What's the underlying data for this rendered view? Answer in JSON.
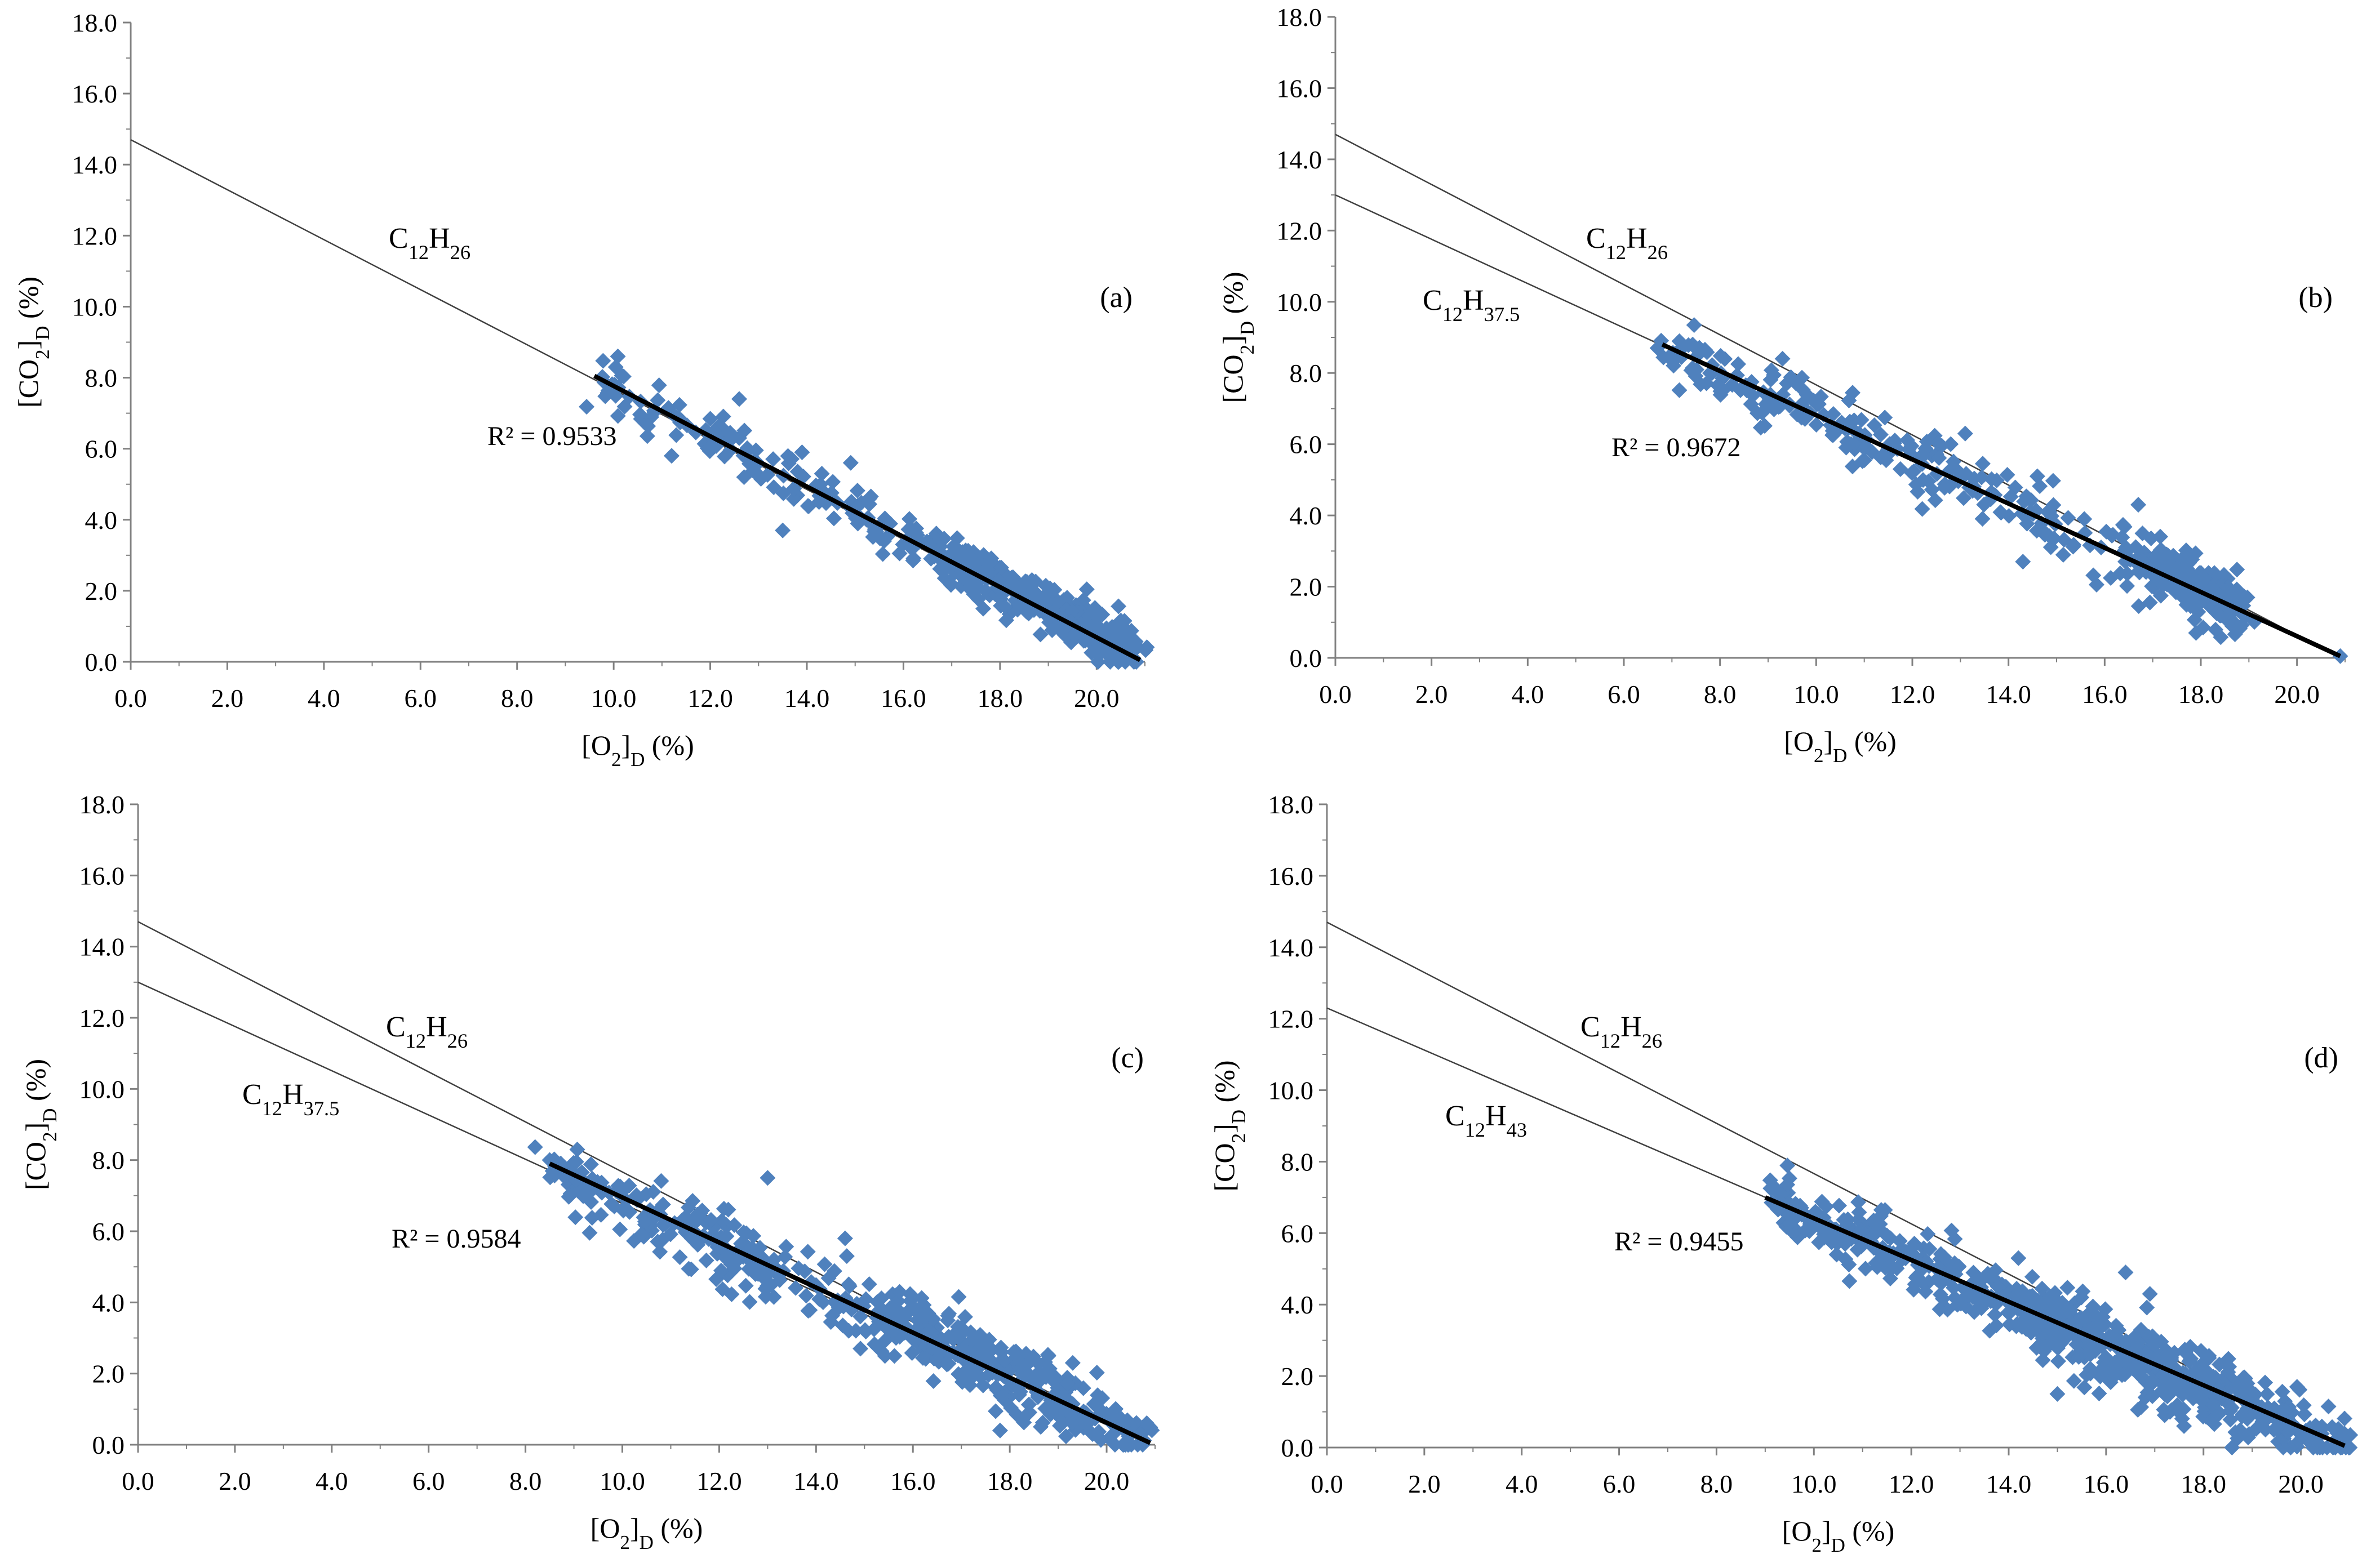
{
  "figure_title": "CO2 vs O2 dilution scatter panels",
  "chart_data": [
    {
      "type": "scatter",
      "panel_label": "(a)",
      "xlabel_main": "[O",
      "xlabel_sub1": "2",
      "xlabel_mid": "]",
      "xlabel_sub2": "D",
      "xlabel_end": " (%)",
      "ylabel_main": "[CO",
      "ylabel_sub1": "2",
      "ylabel_mid": "]",
      "ylabel_sub2": "D",
      "ylabel_end": " (%)",
      "xlim": [
        0,
        21
      ],
      "ylim": [
        0,
        18
      ],
      "xticks": [
        "0.0",
        "2.0",
        "4.0",
        "6.0",
        "8.0",
        "10.0",
        "12.0",
        "14.0",
        "16.0",
        "18.0",
        "20.0"
      ],
      "yticks": [
        "0.0",
        "2.0",
        "4.0",
        "6.0",
        "8.0",
        "10.0",
        "12.0",
        "14.0",
        "16.0",
        "18.0"
      ],
      "r2_label": "R² = 0.9533",
      "fuel_lines": [
        {
          "name_main": "C",
          "name_sub1": "12",
          "name_mid": "H",
          "name_sub2": "26",
          "x0": 0,
          "y0": 14.7,
          "x1": 20.9,
          "y1": 0
        }
      ],
      "trendline": {
        "x0": 9.6,
        "y0": 8.05,
        "x1": 20.9,
        "y1": 0.05
      },
      "point_clusters": [
        {
          "x": [
            9.6,
            20.9
          ],
          "y": [
            8.05,
            0.05
          ],
          "count": 240,
          "scatter": 0.35
        },
        {
          "x": [
            16.5,
            20.8
          ],
          "y": [
            3.3,
            0.3
          ],
          "count": 260,
          "scatter": 0.3
        }
      ],
      "points": [
        {
          "x": 11.2,
          "y": 5.8
        },
        {
          "x": 11.4,
          "y": 6.8
        },
        {
          "x": 12.6,
          "y": 7.4
        },
        {
          "x": 12.6,
          "y": 6.3
        },
        {
          "x": 12.7,
          "y": 5.2
        },
        {
          "x": 13.5,
          "y": 3.7
        },
        {
          "x": 13.9,
          "y": 5.9
        },
        {
          "x": 15.3,
          "y": 4.6
        },
        {
          "x": 15.6,
          "y": 3.4
        }
      ],
      "series_color": "#4f81bd"
    },
    {
      "type": "scatter",
      "panel_label": "(b)",
      "xlabel_main": "[O",
      "xlabel_sub1": "2",
      "xlabel_mid": "]",
      "xlabel_sub2": "D",
      "xlabel_end": " (%)",
      "ylabel_main": "[CO",
      "ylabel_sub1": "2",
      "ylabel_mid": "]",
      "ylabel_sub2": "D",
      "ylabel_end": " (%)",
      "xlim": [
        0,
        21
      ],
      "ylim": [
        0,
        18
      ],
      "xticks": [
        "0.0",
        "2.0",
        "4.0",
        "6.0",
        "8.0",
        "10.0",
        "12.0",
        "14.0",
        "16.0",
        "18.0",
        "20.0"
      ],
      "yticks": [
        "0.0",
        "2.0",
        "4.0",
        "6.0",
        "8.0",
        "10.0",
        "12.0",
        "14.0",
        "16.0",
        "18.0"
      ],
      "r2_label": "R² = 0.9672",
      "fuel_lines": [
        {
          "name_main": "C",
          "name_sub1": "12",
          "name_mid": "H",
          "name_sub2": "26",
          "x0": 0,
          "y0": 14.7,
          "x1": 20.9,
          "y1": 0
        },
        {
          "name_main": "C",
          "name_sub1": "12",
          "name_mid": "H",
          "name_sub2": "37.5",
          "x0": 0,
          "y0": 13.0,
          "x1": 20.9,
          "y1": 0
        }
      ],
      "trendline": {
        "x0": 6.8,
        "y0": 8.8,
        "x1": 20.9,
        "y1": 0.05
      },
      "point_clusters": [
        {
          "x": [
            6.8,
            18.9
          ],
          "y": [
            8.7,
            1.5
          ],
          "count": 300,
          "scatter": 0.45
        },
        {
          "x": [
            16.8,
            18.9
          ],
          "y": [
            2.6,
            1.3
          ],
          "count": 140,
          "scatter": 0.3
        }
      ],
      "points": [
        {
          "x": 9.3,
          "y": 8.4
        },
        {
          "x": 13.1,
          "y": 6.3
        },
        {
          "x": 14.6,
          "y": 5.1
        },
        {
          "x": 16.7,
          "y": 4.3
        },
        {
          "x": 14.3,
          "y": 2.7
        },
        {
          "x": 17.9,
          "y": 0.7
        },
        {
          "x": 20.9,
          "y": 0.05
        },
        {
          "x": 6.7,
          "y": 8.7
        }
      ],
      "series_color": "#4f81bd"
    },
    {
      "type": "scatter",
      "panel_label": "(c)",
      "xlabel_main": "[O",
      "xlabel_sub1": "2",
      "xlabel_mid": "]",
      "xlabel_sub2": "D",
      "xlabel_end": " (%)",
      "ylabel_main": "[CO",
      "ylabel_sub1": "2",
      "ylabel_mid": "]",
      "ylabel_sub2": "D",
      "ylabel_end": " (%)",
      "xlim": [
        0,
        21
      ],
      "ylim": [
        0,
        18
      ],
      "xticks": [
        "0.0",
        "2.0",
        "4.0",
        "6.0",
        "8.0",
        "10.0",
        "12.0",
        "14.0",
        "16.0",
        "18.0",
        "20.0"
      ],
      "yticks": [
        "0.0",
        "2.0",
        "4.0",
        "6.0",
        "8.0",
        "10.0",
        "12.0",
        "14.0",
        "16.0",
        "18.0"
      ],
      "r2_label": "R² = 0.9584",
      "fuel_lines": [
        {
          "name_main": "C",
          "name_sub1": "12",
          "name_mid": "H",
          "name_sub2": "26",
          "x0": 0,
          "y0": 14.7,
          "x1": 20.9,
          "y1": 0
        },
        {
          "name_main": "C",
          "name_sub1": "12",
          "name_mid": "H",
          "name_sub2": "37.5",
          "x0": 0,
          "y0": 13.0,
          "x1": 20.9,
          "y1": 0
        }
      ],
      "trendline": {
        "x0": 8.5,
        "y0": 7.9,
        "x1": 20.9,
        "y1": 0.05
      },
      "point_clusters": [
        {
          "x": [
            8.5,
            20.9
          ],
          "y": [
            7.7,
            0.05
          ],
          "count": 420,
          "scatter": 0.45
        },
        {
          "x": [
            15.5,
            19.5
          ],
          "y": [
            3.8,
            1.2
          ],
          "count": 160,
          "scatter": 0.5
        }
      ],
      "points": [
        {
          "x": 13.0,
          "y": 7.5
        },
        {
          "x": 14.6,
          "y": 5.8
        },
        {
          "x": 17.8,
          "y": 0.4
        },
        {
          "x": 18.8,
          "y": 2.5
        },
        {
          "x": 19.3,
          "y": 2.3
        },
        {
          "x": 8.5,
          "y": 8.0
        }
      ],
      "series_color": "#4f81bd"
    },
    {
      "type": "scatter",
      "panel_label": "(d)",
      "xlabel_main": "[O",
      "xlabel_sub1": "2",
      "xlabel_mid": "]",
      "xlabel_sub2": "D",
      "xlabel_end": " (%)",
      "ylabel_main": "[CO",
      "ylabel_sub1": "2",
      "ylabel_mid": "]",
      "ylabel_sub2": "D",
      "ylabel_end": " (%)",
      "xlim": [
        0,
        21
      ],
      "ylim": [
        0,
        18
      ],
      "xticks": [
        "0.0",
        "2.0",
        "4.0",
        "6.0",
        "8.0",
        "10.0",
        "12.0",
        "14.0",
        "16.0",
        "18.0",
        "20.0"
      ],
      "yticks": [
        "0.0",
        "2.0",
        "4.0",
        "6.0",
        "8.0",
        "10.0",
        "12.0",
        "14.0",
        "16.0",
        "18.0"
      ],
      "r2_label": "R² = 0.9455",
      "fuel_lines": [
        {
          "name_main": "C",
          "name_sub1": "12",
          "name_mid": "H",
          "name_sub2": "26",
          "x0": 0,
          "y0": 14.7,
          "x1": 20.9,
          "y1": 0
        },
        {
          "name_main": "C",
          "name_sub1": "12",
          "name_mid": "H",
          "name_sub2": "43",
          "x0": 0,
          "y0": 12.3,
          "x1": 20.9,
          "y1": 0
        }
      ],
      "trendline": {
        "x0": 9.0,
        "y0": 7.0,
        "x1": 20.9,
        "y1": 0.05
      },
      "point_clusters": [
        {
          "x": [
            9.2,
            20.9
          ],
          "y": [
            6.8,
            0.05
          ],
          "count": 520,
          "scatter": 0.45
        },
        {
          "x": [
            14.5,
            19.0
          ],
          "y": [
            3.8,
            1.0
          ],
          "count": 220,
          "scatter": 0.55
        }
      ],
      "points": [
        {
          "x": 15.0,
          "y": 1.5
        },
        {
          "x": 17.6,
          "y": 0.6
        },
        {
          "x": 16.9,
          "y": 4.3
        },
        {
          "x": 16.4,
          "y": 4.9
        },
        {
          "x": 14.2,
          "y": 5.3
        },
        {
          "x": 19.4,
          "y": 0.9
        }
      ],
      "series_color": "#4f81bd"
    }
  ]
}
